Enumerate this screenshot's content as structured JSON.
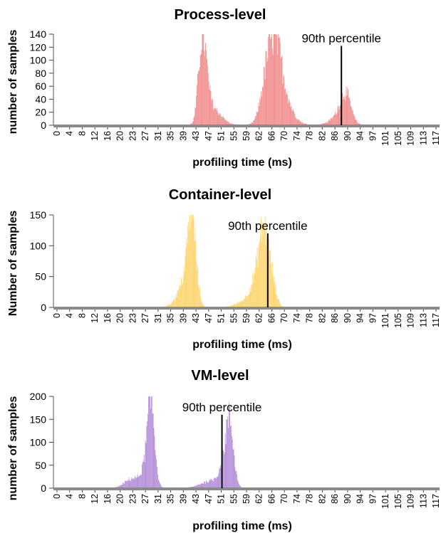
{
  "chart_data": [
    {
      "type": "bar",
      "title": "Process-level",
      "xlabel": "profiling time (ms)",
      "ylabel": "number of samples",
      "ylim": [
        0,
        140
      ],
      "yticks": [
        "0",
        "20",
        "40",
        "60",
        "80",
        "100",
        "120",
        "140"
      ],
      "xticks": [
        "0",
        "4",
        "8",
        "12",
        "16",
        "20",
        "23",
        "27",
        "31",
        "35",
        "39",
        "43",
        "47",
        "51",
        "55",
        "59",
        "62",
        "66",
        "70",
        "74",
        "78",
        "82",
        "86",
        "90",
        "94",
        "97",
        "101",
        "105",
        "109",
        "113",
        "117"
      ],
      "xlim": [
        0,
        118
      ],
      "color": "#f08a8a",
      "grid": false,
      "annotation": {
        "text": "90th percentile",
        "x": 88,
        "y_top": 122
      },
      "peaks": [
        {
          "center": 45.3,
          "height": 120,
          "width": 1.1
        },
        {
          "center": 46.8,
          "height": 35,
          "width": 1.3
        },
        {
          "center": 49.5,
          "height": 20,
          "width": 2.2
        },
        {
          "center": 67.5,
          "height": 115,
          "width": 2.2
        },
        {
          "center": 64.8,
          "height": 38,
          "width": 1.8
        },
        {
          "center": 71.0,
          "height": 25,
          "width": 2.5
        },
        {
          "center": 89.2,
          "height": 42,
          "width": 1.6
        },
        {
          "center": 87.0,
          "height": 12,
          "width": 2.5
        }
      ]
    },
    {
      "type": "bar",
      "title": "Container-level",
      "xlabel": "profiling time (ms)",
      "ylabel": "Number of samples",
      "ylim": [
        0,
        150
      ],
      "yticks": [
        "0",
        "50",
        "100",
        "150"
      ],
      "xticks": [
        "0",
        "4",
        "8",
        "12",
        "16",
        "20",
        "23",
        "27",
        "31",
        "35",
        "39",
        "43",
        "47",
        "51",
        "55",
        "59",
        "62",
        "66",
        "70",
        "74",
        "78",
        "82",
        "86",
        "90",
        "94",
        "97",
        "101",
        "105",
        "109",
        "113",
        "117"
      ],
      "xlim": [
        0,
        118
      ],
      "color": "#fdd36a",
      "grid": false,
      "annotation": {
        "text": "90th percentile",
        "x": 65.5,
        "y_top": 120
      },
      "peaks": [
        {
          "center": 42.2,
          "height": 138,
          "width": 1.3
        },
        {
          "center": 40.0,
          "height": 30,
          "width": 1.8
        },
        {
          "center": 38.0,
          "height": 8,
          "width": 2.0
        },
        {
          "center": 64.3,
          "height": 118,
          "width": 1.6
        },
        {
          "center": 61.5,
          "height": 30,
          "width": 1.8
        },
        {
          "center": 58.0,
          "height": 8,
          "width": 2.5
        },
        {
          "center": 67.0,
          "height": 25,
          "width": 1.2
        }
      ]
    },
    {
      "type": "bar",
      "title": "VM-level",
      "xlabel": "profiling time (ms)",
      "ylabel": "number of samples",
      "ylim": [
        0,
        200
      ],
      "yticks": [
        "0",
        "50",
        "100",
        "150",
        "200"
      ],
      "xticks": [
        "0",
        "4",
        "8",
        "12",
        "16",
        "20",
        "23",
        "27",
        "31",
        "35",
        "39",
        "43",
        "47",
        "51",
        "55",
        "59",
        "62",
        "66",
        "70",
        "74",
        "78",
        "82",
        "86",
        "90",
        "94",
        "97",
        "101",
        "105",
        "109",
        "113",
        "117"
      ],
      "xlim": [
        0,
        118
      ],
      "color": "#b28ad8",
      "grid": false,
      "annotation": {
        "text": "90th percentile",
        "x": 51.5,
        "y_top": 160
      },
      "peaks": [
        {
          "center": 29.8,
          "height": 165,
          "width": 1.1
        },
        {
          "center": 28.3,
          "height": 40,
          "width": 1.5
        },
        {
          "center": 24.0,
          "height": 20,
          "width": 2.2
        },
        {
          "center": 53.8,
          "height": 128,
          "width": 1.2
        },
        {
          "center": 52.0,
          "height": 40,
          "width": 1.5
        },
        {
          "center": 48.0,
          "height": 15,
          "width": 3.0
        }
      ]
    }
  ]
}
